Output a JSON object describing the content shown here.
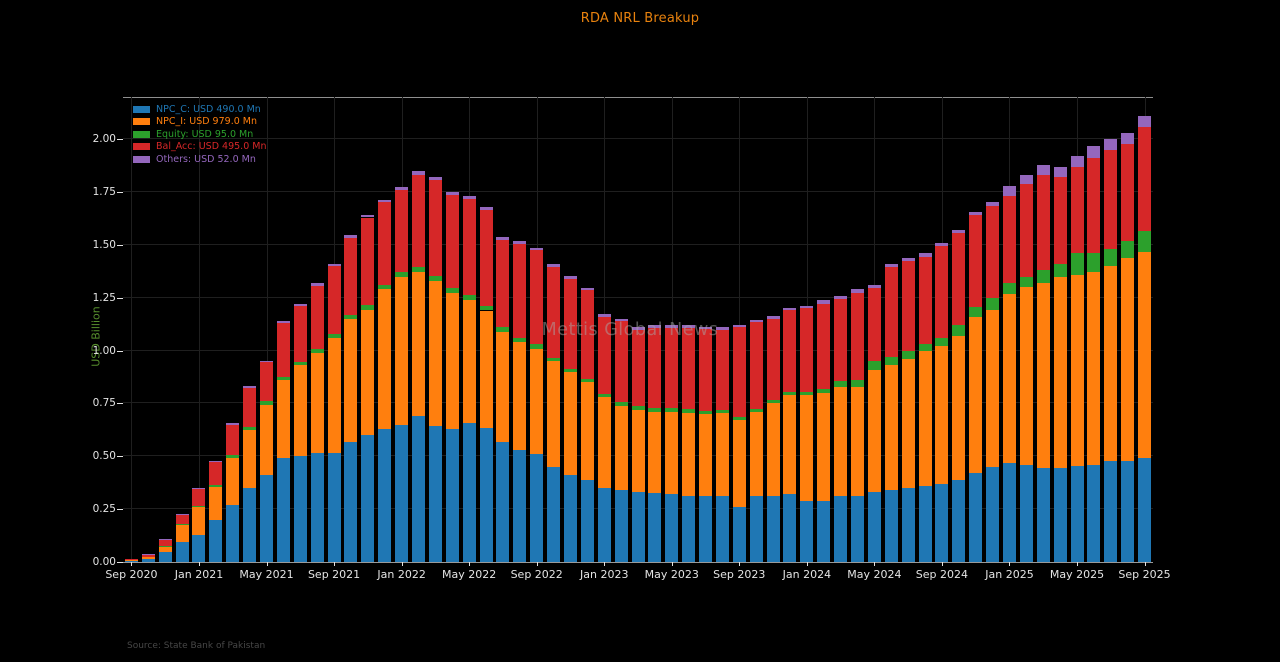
{
  "title": "RDA NRL Breakup",
  "watermark": "Mettis Global News",
  "source": "Source: State Bank of Pakistan",
  "ylabel": "USD Billion",
  "colors": {
    "background": "#000000",
    "title": "#e8820e",
    "ylabel": "#578f2d",
    "tick_label": "#e3e3e3",
    "grid": "#1f1f1f",
    "spine": "#8f8f8f",
    "source": "#474747"
  },
  "legend": {
    "items": [
      {
        "label": "NPC_C: USD 490.0 Mn",
        "color": "#1f77b4"
      },
      {
        "label": "NPC_I: USD 979.0 Mn",
        "color": "#ff7f0e"
      },
      {
        "label": "Equity: USD 95.0 Mn",
        "color": "#2ca02c"
      },
      {
        "label": "Bal_Acc: USD 495.0 Mn",
        "color": "#d62728"
      },
      {
        "label": "Others: USD 52.0 Mn",
        "color": "#9467bd"
      }
    ]
  },
  "chart_data": {
    "type": "bar",
    "stacked": true,
    "title": "RDA NRL Breakup",
    "xlabel": "",
    "ylabel": "USD Billion",
    "ylim": [
      0,
      2.2
    ],
    "yticks": [
      0.0,
      0.25,
      0.5,
      0.75,
      1.0,
      1.25,
      1.5,
      1.75,
      2.0
    ],
    "ytick_labels": [
      "0.00",
      "0.25",
      "0.50",
      "0.75",
      "1.00",
      "1.25",
      "1.50",
      "1.75",
      "2.00"
    ],
    "grid": true,
    "legend_position": "upper-left",
    "x": [
      "Sep 2020",
      "Oct 2020",
      "Nov 2020",
      "Dec 2020",
      "Jan 2021",
      "Feb 2021",
      "Mar 2021",
      "Apr 2021",
      "May 2021",
      "Jun 2021",
      "Jul 2021",
      "Aug 2021",
      "Sep 2021",
      "Oct 2021",
      "Nov 2021",
      "Dec 2021",
      "Jan 2022",
      "Feb 2022",
      "Mar 2022",
      "Apr 2022",
      "May 2022",
      "Jun 2022",
      "Jul 2022",
      "Aug 2022",
      "Sep 2022",
      "Oct 2022",
      "Nov 2022",
      "Dec 2022",
      "Jan 2023",
      "Feb 2023",
      "Mar 2023",
      "Apr 2023",
      "May 2023",
      "Jun 2023",
      "Jul 2023",
      "Aug 2023",
      "Sep 2023",
      "Oct 2023",
      "Nov 2023",
      "Dec 2023",
      "Jan 2024",
      "Feb 2024",
      "Mar 2024",
      "Apr 2024",
      "May 2024",
      "Jun 2024",
      "Jul 2024",
      "Aug 2024",
      "Sep 2024",
      "Oct 2024",
      "Nov 2024",
      "Dec 2024",
      "Jan 2025",
      "Feb 2025",
      "Mar 2025",
      "Apr 2025",
      "May 2025",
      "Jun 2025",
      "Jul 2025",
      "Aug 2025",
      "Sep 2025"
    ],
    "x_tick_every": 4,
    "x_tick_labels": [
      "Sep 2020",
      "Jan 2021",
      "May 2021",
      "Sep 2021",
      "Jan 2022",
      "May 2022",
      "Sep 2022",
      "Jan 2023",
      "May 2023",
      "Sep 2023",
      "Jan 2024",
      "May 2024",
      "Sep 2024",
      "Jan 2025",
      "May 2025",
      "Sep 2025"
    ],
    "series": [
      {
        "name": "NPC_C",
        "color": "#1f77b4",
        "values": [
          0.007,
          0.015,
          0.047,
          0.095,
          0.13,
          0.2,
          0.27,
          0.35,
          0.41,
          0.49,
          0.5,
          0.515,
          0.515,
          0.57,
          0.6,
          0.63,
          0.65,
          0.69,
          0.645,
          0.63,
          0.66,
          0.635,
          0.57,
          0.53,
          0.51,
          0.45,
          0.41,
          0.39,
          0.35,
          0.34,
          0.33,
          0.325,
          0.32,
          0.31,
          0.31,
          0.31,
          0.26,
          0.31,
          0.31,
          0.32,
          0.29,
          0.29,
          0.31,
          0.31,
          0.33,
          0.34,
          0.35,
          0.36,
          0.37,
          0.39,
          0.42,
          0.45,
          0.47,
          0.46,
          0.445,
          0.445,
          0.455,
          0.46,
          0.48,
          0.48,
          0.49
        ]
      },
      {
        "name": "NPC_I",
        "color": "#ff7f0e",
        "values": [
          0.002,
          0.01,
          0.025,
          0.08,
          0.13,
          0.155,
          0.22,
          0.275,
          0.335,
          0.37,
          0.43,
          0.475,
          0.545,
          0.58,
          0.59,
          0.66,
          0.7,
          0.68,
          0.685,
          0.645,
          0.58,
          0.555,
          0.52,
          0.51,
          0.5,
          0.5,
          0.49,
          0.46,
          0.43,
          0.4,
          0.39,
          0.385,
          0.39,
          0.395,
          0.39,
          0.395,
          0.41,
          0.4,
          0.44,
          0.47,
          0.5,
          0.51,
          0.52,
          0.52,
          0.58,
          0.59,
          0.61,
          0.64,
          0.65,
          0.68,
          0.74,
          0.74,
          0.8,
          0.84,
          0.875,
          0.905,
          0.905,
          0.91,
          0.92,
          0.96,
          0.979
        ]
      },
      {
        "name": "Equity",
        "color": "#2ca02c",
        "values": [
          0.0,
          0.001,
          0.002,
          0.003,
          0.004,
          0.008,
          0.015,
          0.015,
          0.015,
          0.015,
          0.015,
          0.018,
          0.02,
          0.02,
          0.025,
          0.022,
          0.022,
          0.028,
          0.022,
          0.022,
          0.022,
          0.022,
          0.02,
          0.02,
          0.02,
          0.015,
          0.015,
          0.015,
          0.015,
          0.018,
          0.018,
          0.018,
          0.018,
          0.018,
          0.016,
          0.015,
          0.015,
          0.015,
          0.015,
          0.015,
          0.015,
          0.018,
          0.025,
          0.03,
          0.04,
          0.04,
          0.04,
          0.03,
          0.04,
          0.05,
          0.045,
          0.06,
          0.05,
          0.05,
          0.06,
          0.06,
          0.1,
          0.09,
          0.08,
          0.08,
          0.095
        ]
      },
      {
        "name": "Bal_Acc",
        "color": "#d62728",
        "values": [
          0.001,
          0.008,
          0.028,
          0.045,
          0.08,
          0.11,
          0.145,
          0.185,
          0.185,
          0.255,
          0.265,
          0.3,
          0.32,
          0.365,
          0.415,
          0.39,
          0.39,
          0.435,
          0.455,
          0.44,
          0.455,
          0.455,
          0.415,
          0.445,
          0.445,
          0.43,
          0.425,
          0.42,
          0.365,
          0.38,
          0.36,
          0.38,
          0.38,
          0.385,
          0.385,
          0.38,
          0.425,
          0.41,
          0.385,
          0.385,
          0.395,
          0.405,
          0.39,
          0.415,
          0.345,
          0.425,
          0.425,
          0.415,
          0.435,
          0.435,
          0.435,
          0.435,
          0.41,
          0.44,
          0.45,
          0.41,
          0.41,
          0.45,
          0.47,
          0.46,
          0.495
        ]
      },
      {
        "name": "Others",
        "color": "#9467bd",
        "values": [
          0.0,
          0.001,
          0.001,
          0.002,
          0.003,
          0.005,
          0.006,
          0.007,
          0.008,
          0.009,
          0.01,
          0.01,
          0.01,
          0.012,
          0.012,
          0.012,
          0.013,
          0.015,
          0.015,
          0.015,
          0.015,
          0.015,
          0.013,
          0.013,
          0.013,
          0.013,
          0.013,
          0.013,
          0.013,
          0.013,
          0.013,
          0.013,
          0.013,
          0.013,
          0.013,
          0.012,
          0.012,
          0.012,
          0.012,
          0.012,
          0.013,
          0.015,
          0.015,
          0.015,
          0.015,
          0.015,
          0.015,
          0.015,
          0.015,
          0.015,
          0.015,
          0.02,
          0.05,
          0.04,
          0.05,
          0.05,
          0.05,
          0.06,
          0.05,
          0.05,
          0.052
        ]
      }
    ]
  }
}
